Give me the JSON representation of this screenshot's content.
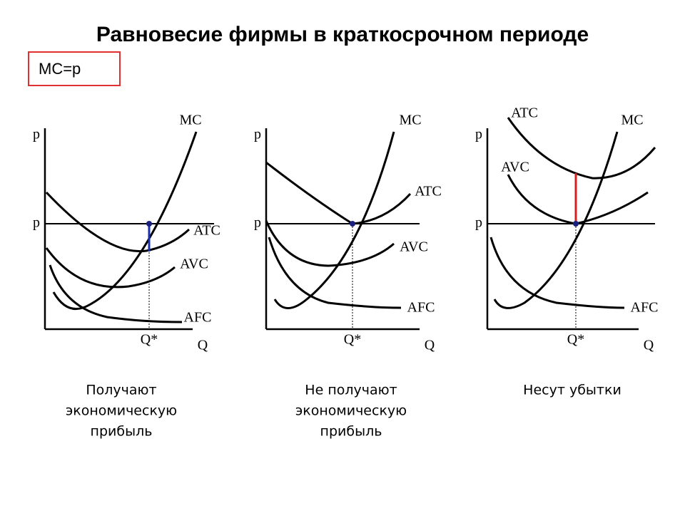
{
  "title": "Равновесие фирмы в краткосрочном периоде",
  "formula": "MC=p",
  "panels": [
    {
      "y_axis": "p",
      "price": "p",
      "x_axis": "Q",
      "equilibrium": "Q*",
      "curves": {
        "mc": "MC",
        "atc": "ATC",
        "avc": "AVC",
        "afc": "AFC"
      },
      "caption": [
        "Получают",
        "экономическую",
        "прибыль"
      ]
    },
    {
      "y_axis": "p",
      "price": "p",
      "x_axis": "Q",
      "equilibrium": "Q*",
      "curves": {
        "mc": "MC",
        "atc": "ATC",
        "avc": "AVC",
        "afc": "AFC"
      },
      "caption": [
        "Не получают",
        "экономическую",
        "прибыль"
      ]
    },
    {
      "y_axis": "p",
      "price": "p",
      "x_axis": "Q",
      "equilibrium": "Q*",
      "curves": {
        "mc": "MC",
        "atc": "ATC",
        "avc": "AVC",
        "afc": "AFC"
      },
      "caption": [
        "Несут убытки"
      ]
    }
  ]
}
